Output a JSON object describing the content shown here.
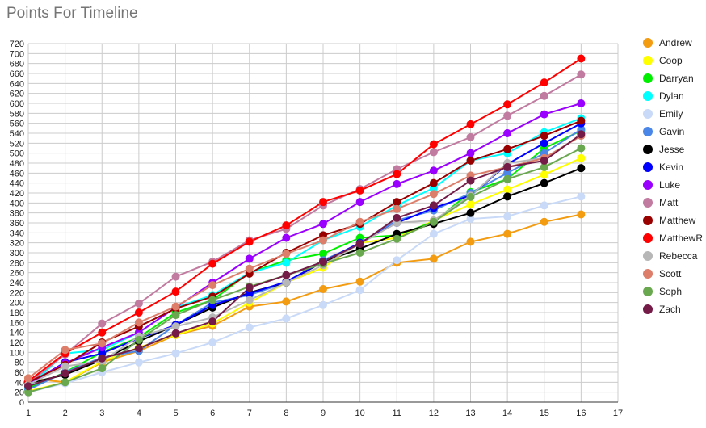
{
  "chart_data": {
    "type": "line",
    "title": "Points For Timeline",
    "xlabel": "",
    "ylabel": "",
    "xlim": [
      1,
      17
    ],
    "ylim": [
      0,
      720
    ],
    "x_ticks": [
      1,
      2,
      3,
      4,
      5,
      6,
      7,
      8,
      9,
      10,
      11,
      12,
      13,
      14,
      15,
      16,
      17
    ],
    "y_ticks": [
      0,
      20,
      40,
      60,
      80,
      100,
      120,
      140,
      160,
      180,
      200,
      220,
      240,
      260,
      280,
      300,
      320,
      340,
      360,
      380,
      400,
      420,
      440,
      460,
      480,
      500,
      520,
      540,
      560,
      580,
      600,
      620,
      640,
      660,
      680,
      700,
      720
    ],
    "grid": true,
    "legend_position": "right",
    "x": [
      1,
      2,
      3,
      4,
      5,
      6,
      7,
      8,
      9,
      10,
      11,
      12,
      13,
      14,
      15,
      16
    ],
    "series": [
      {
        "name": "Andrew",
        "color": "#f39c12",
        "values": [
          48,
          40,
          80,
          103,
          135,
          153,
          192,
          202,
          227,
          242,
          280,
          288,
          322,
          338,
          362,
          377
        ]
      },
      {
        "name": "Coop",
        "color": "#ffff00",
        "values": [
          22,
          40,
          82,
          110,
          135,
          158,
          200,
          240,
          270,
          320,
          330,
          365,
          397,
          427,
          457,
          490
        ]
      },
      {
        "name": "Darryan",
        "color": "#00ee00",
        "values": [
          28,
          60,
          100,
          130,
          180,
          205,
          260,
          285,
          298,
          330,
          335,
          362,
          422,
          448,
          510,
          545
        ]
      },
      {
        "name": "Dylan",
        "color": "#00ffff",
        "values": [
          30,
          98,
          105,
          140,
          190,
          215,
          260,
          280,
          325,
          352,
          395,
          430,
          485,
          500,
          542,
          570
        ]
      },
      {
        "name": "Emily",
        "color": "#c9daf8",
        "values": [
          20,
          38,
          60,
          80,
          98,
          120,
          150,
          168,
          195,
          225,
          285,
          338,
          368,
          373,
          395,
          413
        ]
      },
      {
        "name": "Gavin",
        "color": "#4a86e8",
        "values": [
          25,
          60,
          90,
          103,
          155,
          200,
          215,
          240,
          285,
          318,
          365,
          385,
          420,
          460,
          500,
          548
        ]
      },
      {
        "name": "Jesse",
        "color": "#000000",
        "values": [
          38,
          55,
          85,
          122,
          155,
          190,
          220,
          240,
          282,
          308,
          338,
          358,
          380,
          413,
          440,
          470
        ]
      },
      {
        "name": "Kevin",
        "color": "#0000ff",
        "values": [
          36,
          80,
          98,
          128,
          155,
          195,
          218,
          242,
          282,
          320,
          360,
          390,
          415,
          478,
          520,
          560
        ]
      },
      {
        "name": "Luke",
        "color": "#9900ff",
        "values": [
          38,
          78,
          110,
          140,
          190,
          240,
          288,
          330,
          358,
          402,
          438,
          465,
          500,
          540,
          578,
          600
        ]
      },
      {
        "name": "Matt",
        "color": "#c27ba0",
        "values": [
          38,
          96,
          158,
          198,
          252,
          282,
          325,
          348,
          395,
          428,
          468,
          502,
          532,
          575,
          615,
          658
        ]
      },
      {
        "name": "Matthew",
        "color": "#990000",
        "values": [
          40,
          75,
          120,
          152,
          188,
          212,
          258,
          300,
          335,
          358,
          402,
          440,
          485,
          508,
          535,
          565
        ]
      },
      {
        "name": "MatthewR",
        "color": "#ff0000",
        "values": [
          42,
          98,
          140,
          180,
          222,
          278,
          322,
          355,
          402,
          425,
          458,
          518,
          558,
          598,
          642,
          690
        ]
      },
      {
        "name": "Rebecca",
        "color": "#b7b7b7",
        "values": [
          35,
          72,
          82,
          132,
          152,
          170,
          205,
          240,
          275,
          318,
          360,
          365,
          415,
          480,
          490,
          535
        ]
      },
      {
        "name": "Scott",
        "color": "#dd7e6b",
        "values": [
          48,
          105,
          118,
          160,
          192,
          235,
          268,
          298,
          325,
          362,
          388,
          418,
          455,
          472,
          490,
          535
        ]
      },
      {
        "name": "Soph",
        "color": "#6aa84f",
        "values": [
          20,
          40,
          68,
          125,
          175,
          205,
          232,
          255,
          278,
          300,
          328,
          362,
          412,
          448,
          472,
          510
        ]
      },
      {
        "name": "Zach",
        "color": "#741b47",
        "values": [
          32,
          58,
          88,
          108,
          138,
          162,
          230,
          255,
          282,
          318,
          370,
          395,
          445,
          472,
          485,
          538
        ]
      }
    ]
  }
}
